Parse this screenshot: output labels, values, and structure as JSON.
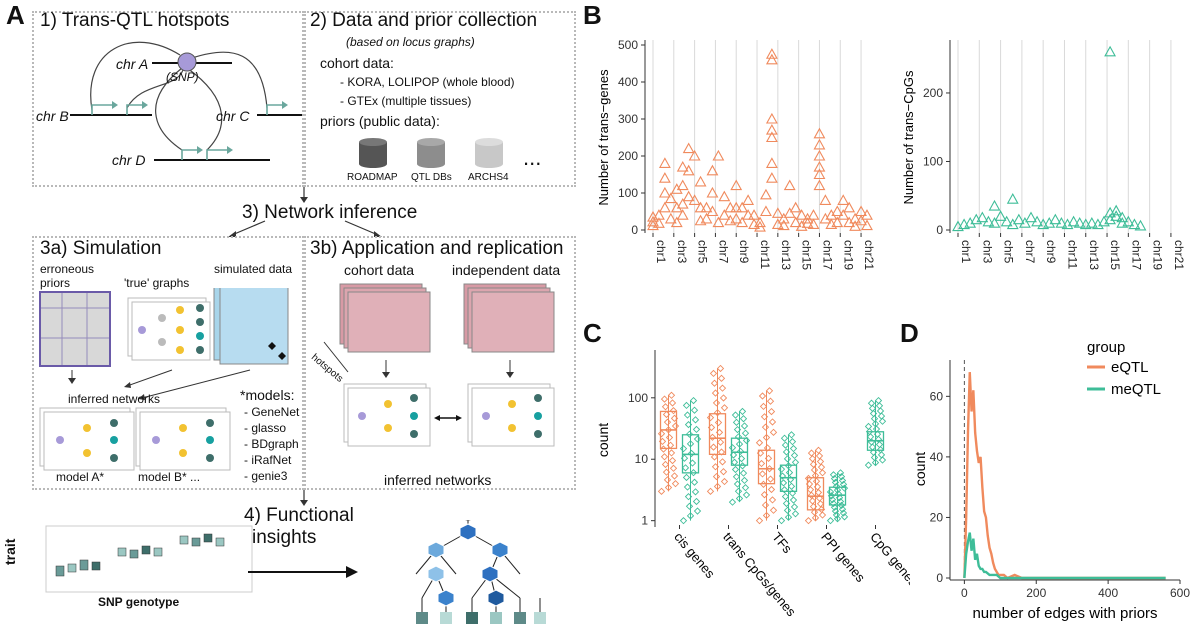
{
  "panelA": {
    "letter": "A",
    "s1": {
      "title": "1) Trans-QTL hotspots",
      "chrA": "chr A",
      "snp": "(SNP)",
      "chrB": "chr B",
      "chrC": "chr C",
      "chrD": "chr D"
    },
    "s2": {
      "title": "2) Data and prior collection",
      "subtitle": "(based on locus graphs)",
      "cohort_label": "cohort data:",
      "cohort_items": [
        "- KORA, LOLIPOP (whole blood)",
        "- GTEx (multiple tissues)"
      ],
      "priors_label": "priors (public data):",
      "dbs": [
        "ROADMAP",
        "QTL DBs",
        "ARCHS4"
      ],
      "ellipsis": "..."
    },
    "s3": {
      "title": "3) Network inference"
    },
    "s3a": {
      "title": "3a) Simulation",
      "erroneous1": "erroneous",
      "erroneous2": "priors",
      "true_graphs": "'true' graphs",
      "simulated": "simulated data",
      "inferred": "inferred networks",
      "models_label": "*models:",
      "models": [
        "- GeneNet",
        "- glasso",
        "- BDgraph",
        "- iRafNet",
        "- genie3"
      ],
      "modelA": "model A*",
      "modelB": "model B* ..."
    },
    "s3b": {
      "title": "3b) Application and replication",
      "cohort": "cohort data",
      "independent": "independent data",
      "hotspots": "hotspots",
      "inferred": "inferred networks"
    },
    "s4": {
      "title1": "4) Functional",
      "title2": "insights",
      "trait": "trait",
      "snp_genotype": "SNP genotype"
    }
  },
  "panelB": {
    "letter": "B",
    "chromosome_labels": [
      "chr1",
      "chr3",
      "chr5",
      "chr7",
      "chr9",
      "chr11",
      "chr13",
      "chr15",
      "chr17",
      "chr19",
      "chr21"
    ],
    "left": {
      "ylabel": "Number of trans−genes",
      "yticks": [
        "0",
        "100",
        "200",
        "300",
        "400",
        "500"
      ],
      "ymax": 500,
      "color": "#f08a5d",
      "points": [
        [
          1,
          22
        ],
        [
          1,
          12
        ],
        [
          1,
          35
        ],
        [
          2,
          40
        ],
        [
          2,
          18
        ],
        [
          3,
          140
        ],
        [
          3,
          180
        ],
        [
          3,
          100
        ],
        [
          3,
          60
        ],
        [
          4,
          85
        ],
        [
          4,
          30
        ],
        [
          5,
          110
        ],
        [
          5,
          60
        ],
        [
          5,
          20
        ],
        [
          6,
          170
        ],
        [
          6,
          120
        ],
        [
          6,
          70
        ],
        [
          6,
          40
        ],
        [
          7,
          220
        ],
        [
          7,
          160
        ],
        [
          7,
          90
        ],
        [
          8,
          200
        ],
        [
          8,
          80
        ],
        [
          9,
          130
        ],
        [
          9,
          60
        ],
        [
          9,
          25
        ],
        [
          10,
          60
        ],
        [
          10,
          30
        ],
        [
          11,
          160
        ],
        [
          11,
          100
        ],
        [
          11,
          50
        ],
        [
          12,
          200
        ],
        [
          12,
          20
        ],
        [
          13,
          90
        ],
        [
          13,
          40
        ],
        [
          14,
          60
        ],
        [
          14,
          25
        ],
        [
          15,
          120
        ],
        [
          15,
          60
        ],
        [
          15,
          30
        ],
        [
          16,
          60
        ],
        [
          16,
          20
        ],
        [
          17,
          80
        ],
        [
          17,
          40
        ],
        [
          18,
          40
        ],
        [
          18,
          15
        ],
        [
          19,
          20
        ],
        [
          19,
          8
        ],
        [
          20,
          95
        ],
        [
          20,
          50
        ],
        [
          21,
          475
        ],
        [
          21,
          460
        ],
        [
          21,
          300
        ],
        [
          21,
          270
        ],
        [
          21,
          250
        ],
        [
          21,
          180
        ],
        [
          21,
          140
        ],
        [
          22,
          45
        ],
        [
          22,
          15
        ],
        [
          23,
          30
        ],
        [
          23,
          12
        ],
        [
          24,
          120
        ],
        [
          24,
          45
        ],
        [
          25,
          60
        ],
        [
          25,
          20
        ],
        [
          26,
          40
        ],
        [
          26,
          10
        ],
        [
          27,
          30
        ],
        [
          27,
          18
        ],
        [
          28,
          40
        ],
        [
          28,
          15
        ],
        [
          29,
          260
        ],
        [
          29,
          230
        ],
        [
          29,
          200
        ],
        [
          29,
          170
        ],
        [
          29,
          150
        ],
        [
          29,
          120
        ],
        [
          30,
          80
        ],
        [
          30,
          30
        ],
        [
          31,
          40
        ],
        [
          31,
          15
        ],
        [
          32,
          50
        ],
        [
          32,
          20
        ],
        [
          33,
          80
        ],
        [
          33,
          40
        ],
        [
          34,
          60
        ],
        [
          34,
          20
        ],
        [
          35,
          30
        ],
        [
          35,
          10
        ],
        [
          36,
          50
        ],
        [
          36,
          25
        ],
        [
          37,
          40
        ],
        [
          37,
          12
        ]
      ]
    },
    "right": {
      "ylabel": "Number of trans−CpGs",
      "yticks": [
        "0",
        "100",
        "200"
      ],
      "ymax": 270,
      "color": "#3ebd98",
      "points": [
        [
          1,
          5
        ],
        [
          2,
          8
        ],
        [
          3,
          10
        ],
        [
          4,
          15
        ],
        [
          5,
          18
        ],
        [
          6,
          12
        ],
        [
          7,
          35
        ],
        [
          7,
          10
        ],
        [
          8,
          20
        ],
        [
          9,
          12
        ],
        [
          10,
          45
        ],
        [
          10,
          8
        ],
        [
          11,
          15
        ],
        [
          12,
          10
        ],
        [
          13,
          18
        ],
        [
          14,
          12
        ],
        [
          15,
          8
        ],
        [
          16,
          10
        ],
        [
          17,
          15
        ],
        [
          18,
          10
        ],
        [
          19,
          8
        ],
        [
          20,
          12
        ],
        [
          21,
          10
        ],
        [
          22,
          8
        ],
        [
          23,
          10
        ],
        [
          24,
          8
        ],
        [
          25,
          12
        ],
        [
          26,
          260
        ],
        [
          26,
          25
        ],
        [
          26,
          15
        ],
        [
          27,
          28
        ],
        [
          27,
          20
        ],
        [
          28,
          18
        ],
        [
          28,
          10
        ],
        [
          29,
          12
        ],
        [
          30,
          8
        ],
        [
          31,
          6
        ]
      ]
    }
  },
  "panelC": {
    "letter": "C",
    "ylabel": "count",
    "yticks": [
      "1",
      "10",
      "100"
    ],
    "categories": [
      "cis genes",
      "trans CpGs/genes",
      "TFs",
      "PPI genes",
      "CpG genes"
    ],
    "colors": {
      "eQTL": "#f08a5d",
      "meQTL": "#3ebd98"
    },
    "boxes": [
      {
        "cat": 0,
        "group": "eQTL",
        "q1": 15,
        "med": 30,
        "q3": 60,
        "lo": 3,
        "hi": 110
      },
      {
        "cat": 0,
        "group": "meQTL",
        "q1": 6,
        "med": 12,
        "q3": 25,
        "lo": 1,
        "hi": 90
      },
      {
        "cat": 1,
        "group": "eQTL",
        "q1": 12,
        "med": 22,
        "q3": 55,
        "lo": 3,
        "hi": 300
      },
      {
        "cat": 1,
        "group": "meQTL",
        "q1": 8,
        "med": 13,
        "q3": 22,
        "lo": 2,
        "hi": 60
      },
      {
        "cat": 2,
        "group": "eQTL",
        "q1": 4,
        "med": 7,
        "q3": 14,
        "lo": 1,
        "hi": 130
      },
      {
        "cat": 2,
        "group": "meQTL",
        "q1": 3,
        "med": 5,
        "q3": 8,
        "lo": 1,
        "hi": 25
      },
      {
        "cat": 3,
        "group": "eQTL",
        "q1": 1.5,
        "med": 2.5,
        "q3": 5,
        "lo": 1,
        "hi": 14
      },
      {
        "cat": 3,
        "group": "meQTL",
        "q1": 1.8,
        "med": 2.6,
        "q3": 3.5,
        "lo": 1,
        "hi": 6
      },
      {
        "cat": 4,
        "group": "meQTL",
        "q1": 14,
        "med": 20,
        "q3": 28,
        "lo": 8,
        "hi": 90
      }
    ]
  },
  "panelD": {
    "letter": "D",
    "xlabel": "number of edges with priors",
    "ylabel": "count",
    "xticks": [
      "0",
      "200",
      "400",
      "600"
    ],
    "yticks": [
      "0",
      "20",
      "40",
      "60"
    ],
    "xlim": [
      -40,
      600
    ],
    "ylim": [
      0,
      72
    ],
    "legend_title": "group",
    "series": [
      {
        "name": "eQTL",
        "color": "#f08a5d",
        "x": [
          0,
          5,
          10,
          15,
          20,
          25,
          30,
          35,
          40,
          45,
          50,
          55,
          60,
          65,
          70,
          75,
          80,
          85,
          90,
          95,
          100,
          110,
          120,
          140,
          160,
          200,
          250,
          300,
          350,
          400,
          450,
          500,
          560
        ],
        "y": [
          0,
          20,
          48,
          68,
          55,
          62,
          48,
          42,
          38,
          40,
          30,
          22,
          20,
          14,
          10,
          8,
          5,
          3,
          2,
          1,
          1,
          1,
          0,
          1,
          0,
          0,
          0,
          0,
          0,
          0,
          0,
          0,
          0
        ]
      },
      {
        "name": "meQTL",
        "color": "#3ebd98",
        "x": [
          0,
          5,
          10,
          15,
          20,
          25,
          30,
          35,
          40,
          45,
          50,
          55,
          60,
          70,
          80,
          90,
          100,
          120,
          150,
          200,
          300,
          400,
          560
        ],
        "y": [
          0,
          8,
          12,
          15,
          9,
          13,
          6,
          8,
          4,
          3,
          3,
          2,
          2,
          1,
          1,
          1,
          0,
          0,
          0,
          0,
          0,
          0,
          0
        ]
      }
    ]
  }
}
